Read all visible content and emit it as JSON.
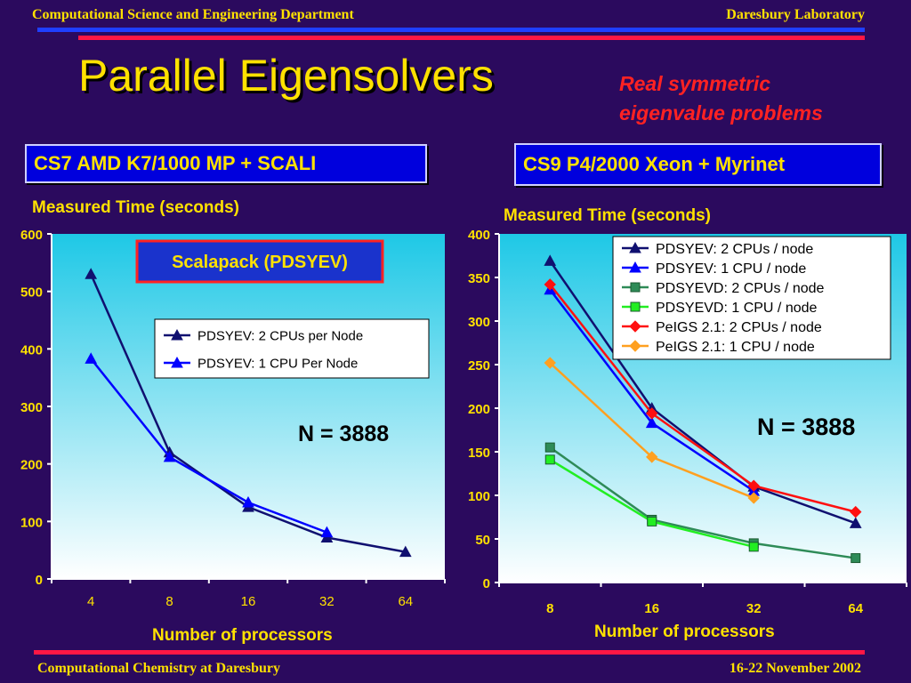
{
  "header": {
    "left": "Computational Science and Engineering Department",
    "right": "Daresbury Laboratory"
  },
  "footer": {
    "left": "Computational Chemistry at Daresbury",
    "right": "16-22 November 2002"
  },
  "slide": {
    "title": "Parallel Eigensolvers",
    "subtitle_line1": "Real symmetric",
    "subtitle_line2": "eigenvalue problems"
  },
  "colors": {
    "text_yellow": "#ffe100",
    "background": "#2b0a5e",
    "red": "#ff2222",
    "blue_box": "#0000dd"
  },
  "chart_data": [
    {
      "type": "line",
      "machine": "CS7 AMD K7/1000 MP + SCALI",
      "ylabel": "Measured Time (seconds)",
      "xlabel": "Number of processors",
      "box_label": "Scalapack (PDSYEV)",
      "annotation": "N = 3888",
      "categories": [
        "4",
        "8",
        "16",
        "32",
        "64"
      ],
      "ylim": [
        0,
        600
      ],
      "yticks": [
        "0",
        "100",
        "200",
        "300",
        "400",
        "500",
        "600"
      ],
      "legend_position": "center-right",
      "series": [
        {
          "name": "PDSYEV: 2 CPUs per Node",
          "color": "#101070",
          "marker": "triangle",
          "values": [
            530,
            220,
            125,
            72,
            47
          ]
        },
        {
          "name": "PDSYEV: 1 CPU Per Node",
          "color": "#0000ff",
          "marker": "triangle",
          "values": [
            383,
            212,
            133,
            81,
            null
          ]
        }
      ]
    },
    {
      "type": "line",
      "machine": "CS9 P4/2000  Xeon + Myrinet",
      "ylabel": "Measured Time (seconds)",
      "xlabel": "Number of processors",
      "annotation": "N = 3888",
      "categories": [
        "8",
        "16",
        "32",
        "64"
      ],
      "ylim": [
        0,
        400
      ],
      "yticks": [
        "0",
        "50",
        "100",
        "150",
        "200",
        "250",
        "300",
        "350",
        "400"
      ],
      "legend_position": "top-right",
      "series": [
        {
          "name": "PDSYEV: 2 CPUs / node",
          "color": "#101070",
          "marker": "triangle",
          "values": [
            369,
            200,
            110,
            68
          ]
        },
        {
          "name": "PDSYEV: 1 CPU / node",
          "color": "#0000ff",
          "marker": "triangle",
          "values": [
            336,
            183,
            105,
            null
          ]
        },
        {
          "name": "PDSYEVD: 2 CPUs / node",
          "color": "#2e8b57",
          "marker": "square",
          "values": [
            155,
            72,
            45,
            28
          ]
        },
        {
          "name": "PDSYEVD: 1 CPU / node",
          "color": "#22ee22",
          "marker": "square",
          "values": [
            141,
            70,
            41,
            null
          ]
        },
        {
          "name": "PeIGS 2.1: 2 CPUs / node",
          "color": "#ff1010",
          "marker": "diamond",
          "values": [
            342,
            194,
            111,
            81
          ]
        },
        {
          "name": "PeIGS 2.1: 1 CPU / node",
          "color": "#ffa020",
          "marker": "diamond",
          "values": [
            252,
            144,
            97,
            null
          ]
        }
      ]
    }
  ]
}
